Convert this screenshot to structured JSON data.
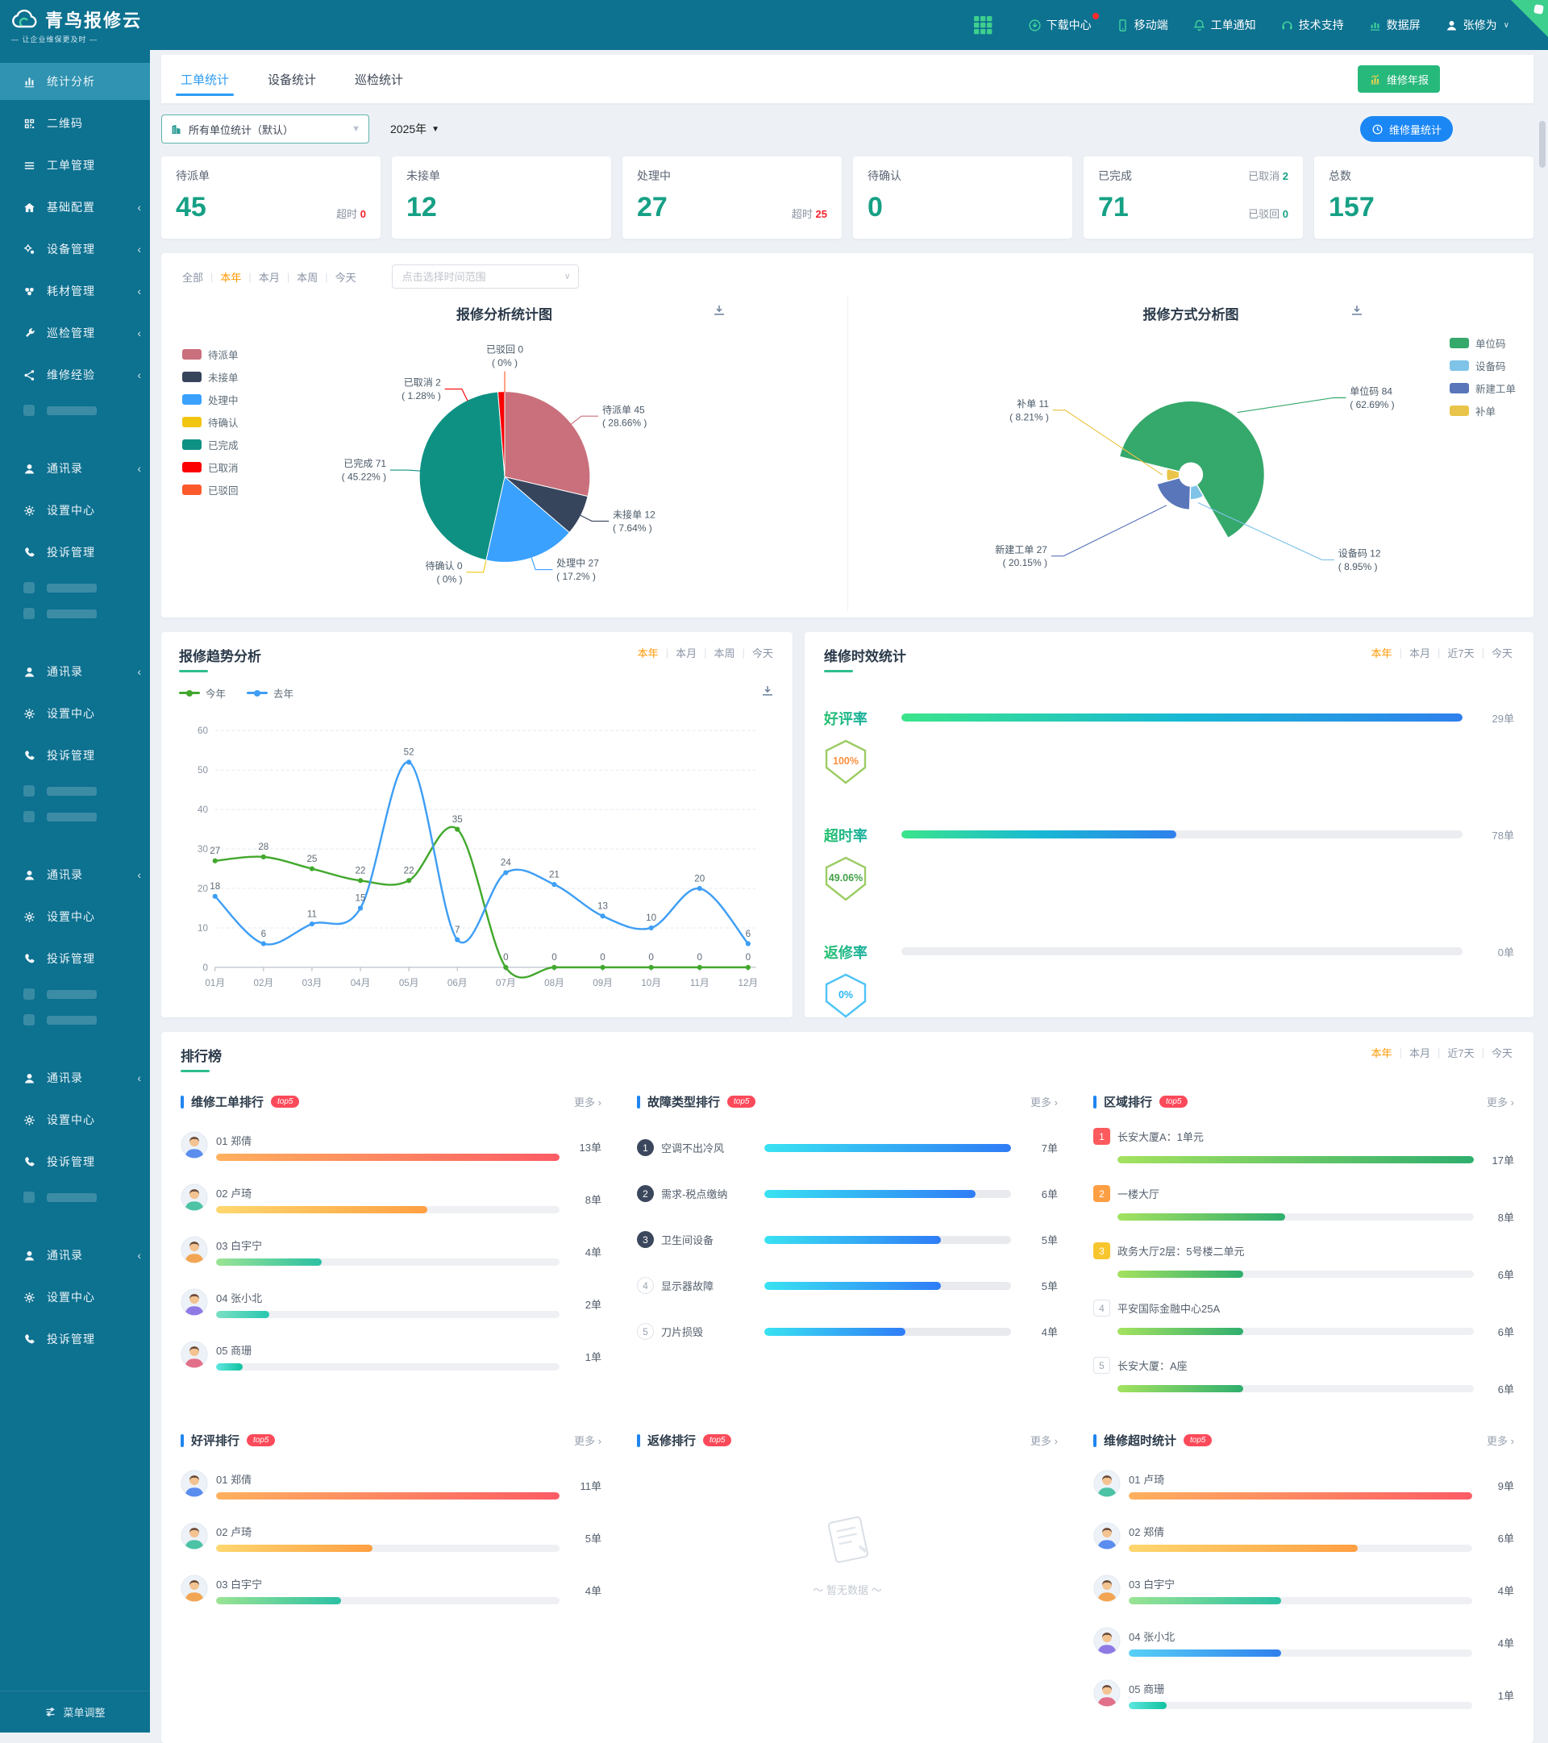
{
  "brand": {
    "name": "青鸟报修云",
    "tagline": "— 让企业维保更及时 —"
  },
  "colors": {
    "primary_teal": "#0d7190",
    "accent_green": "#2fbe8e",
    "accent_blue": "#2d9cf4",
    "accent_orange": "#ff9800",
    "stat_teal": "#16a085",
    "alert_red": "#f5222d"
  },
  "topnav": {
    "items": [
      {
        "id": "download-center",
        "icon": "download",
        "label": "下载中心",
        "badge": true
      },
      {
        "id": "mobile",
        "icon": "mobile",
        "label": "移动端"
      },
      {
        "id": "order-notice",
        "icon": "bell",
        "label": "工单通知"
      },
      {
        "id": "tech-support",
        "icon": "headset",
        "label": "技术支持"
      },
      {
        "id": "data-screen",
        "icon": "screen",
        "label": "数据屏"
      },
      {
        "id": "user",
        "icon": "user",
        "label": "张修为",
        "caret": true
      }
    ]
  },
  "sidebar": {
    "items": [
      {
        "label": "统计分析",
        "icon": "chart",
        "active": true
      },
      {
        "label": "二维码",
        "icon": "qrcode"
      },
      {
        "label": "工单管理",
        "icon": "list"
      },
      {
        "label": "基础配置",
        "icon": "home",
        "arrow": true
      },
      {
        "label": "设备管理",
        "icon": "gears",
        "arrow": true
      },
      {
        "label": "耗材管理",
        "icon": "boxes",
        "arrow": true
      },
      {
        "label": "巡检管理",
        "icon": "wrench",
        "arrow": true
      },
      {
        "label": "维修经验",
        "icon": "share",
        "arrow": true
      },
      {
        "ghost": true
      },
      {
        "label": "通讯录",
        "icon": "user",
        "arrow": true
      },
      {
        "label": "设置中心",
        "icon": "gear"
      },
      {
        "label": "投诉管理",
        "icon": "phone"
      },
      {
        "ghost": true
      },
      {
        "ghost": true
      },
      {
        "label": "通讯录",
        "icon": "user",
        "arrow": true
      },
      {
        "label": "设置中心",
        "icon": "gear"
      },
      {
        "label": "投诉管理",
        "icon": "phone"
      },
      {
        "ghost": true
      },
      {
        "ghost": true
      },
      {
        "label": "通讯录",
        "icon": "user",
        "arrow": true
      },
      {
        "label": "设置中心",
        "icon": "gear"
      },
      {
        "label": "投诉管理",
        "icon": "phone"
      },
      {
        "ghost": true
      },
      {
        "ghost": true
      },
      {
        "label": "通讯录",
        "icon": "user",
        "arrow": true
      },
      {
        "label": "设置中心",
        "icon": "gear"
      },
      {
        "label": "投诉管理",
        "icon": "phone"
      },
      {
        "ghost": true
      },
      {
        "label": "通讯录",
        "icon": "user",
        "arrow": true
      },
      {
        "label": "设置中心",
        "icon": "gear"
      },
      {
        "label": "投诉管理",
        "icon": "phone"
      }
    ],
    "footer": "菜单调整"
  },
  "tabs": {
    "items": [
      "工单统计",
      "设备统计",
      "巡检统计"
    ],
    "active": 0
  },
  "buttons": {
    "annual_report": "维修年报",
    "volume_stats": "维修量统计"
  },
  "toolbar": {
    "unit_filter": "所有单位统计（默认）",
    "year": "2025年"
  },
  "stat_cards": [
    {
      "title": "待派单",
      "value": "45",
      "side": [
        {
          "label": "超时",
          "value": "0",
          "tone": "red",
          "row": "bottom"
        }
      ]
    },
    {
      "title": "未接单",
      "value": "12",
      "side": []
    },
    {
      "title": "处理中",
      "value": "27",
      "side": [
        {
          "label": "超时",
          "value": "25",
          "tone": "red",
          "row": "bottom"
        }
      ]
    },
    {
      "title": "待确认",
      "value": "0",
      "side": []
    },
    {
      "title": "已完成",
      "value": "71",
      "side": [
        {
          "label": "已取消",
          "value": "2",
          "tone": "teal",
          "row": "top"
        },
        {
          "label": "已驳回",
          "value": "0",
          "tone": "teal",
          "row": "bottom"
        }
      ]
    },
    {
      "title": "总数",
      "value": "157",
      "side": []
    }
  ],
  "filters": {
    "charts": {
      "options": [
        "全部",
        "本年",
        "本月",
        "本周",
        "今天"
      ],
      "active": 1
    },
    "trend": {
      "options": [
        "本年",
        "本月",
        "本周",
        "今天"
      ],
      "active": 0
    },
    "efficiency": {
      "options": [
        "本年",
        "本月",
        "近7天",
        "今天"
      ],
      "active": 0
    },
    "rankings": {
      "options": [
        "本年",
        "本月",
        "近7天",
        "今天"
      ],
      "active": 0
    },
    "range_placeholder": "点击选择时间范围"
  },
  "chart_data": [
    {
      "id": "repair_status_pie",
      "type": "pie",
      "title": "报修分析统计图",
      "legend": [
        "待派单",
        "未接单",
        "处理中",
        "待确认",
        "已完成",
        "已取消",
        "已驳回"
      ],
      "series": [
        {
          "name": "待派单",
          "value": 45,
          "pct": "28.66%",
          "color": "#c9707c"
        },
        {
          "name": "未接单",
          "value": 12,
          "pct": "7.64%",
          "color": "#36445c"
        },
        {
          "name": "处理中",
          "value": 27,
          "pct": "17.2%",
          "color": "#3aa1ff"
        },
        {
          "name": "待确认",
          "value": 0,
          "pct": "0%",
          "color": "#f2c511"
        },
        {
          "name": "已完成",
          "value": 71,
          "pct": "45.22%",
          "color": "#0e9183"
        },
        {
          "name": "已取消",
          "value": 2,
          "pct": "1.28%",
          "color": "#fb0102"
        },
        {
          "name": "已驳回",
          "value": 0,
          "pct": "0%",
          "color": "#fc5a2d"
        }
      ]
    },
    {
      "id": "repair_channel_rose",
      "type": "pie",
      "subtype": "nightingale",
      "title": "报修方式分析图",
      "legend": [
        "单位码",
        "设备码",
        "新建工单",
        "补单"
      ],
      "start_angle": -76,
      "series": [
        {
          "name": "单位码",
          "value": 84,
          "pct": "62.69%",
          "color": "#35a86b"
        },
        {
          "name": "设备码",
          "value": 12,
          "pct": "8.95%",
          "color": "#7fc3e8"
        },
        {
          "name": "新建工单",
          "value": 27,
          "pct": "20.15%",
          "color": "#5976ba"
        },
        {
          "name": "补单",
          "value": 11,
          "pct": "8.21%",
          "color": "#e8c54a"
        }
      ]
    },
    {
      "id": "repair_trend",
      "type": "line",
      "title": "报修趋势分析",
      "categories": [
        "01月",
        "02月",
        "03月",
        "04月",
        "05月",
        "06月",
        "07月",
        "08月",
        "09月",
        "10月",
        "11月",
        "12月"
      ],
      "series": [
        {
          "name": "今年",
          "color": "#42a82d",
          "values": [
            27,
            28,
            25,
            22,
            22,
            35,
            0,
            0,
            0,
            0,
            0,
            0
          ]
        },
        {
          "name": "去年",
          "color": "#3e9ef5",
          "values": [
            18,
            6,
            11,
            15,
            52,
            7,
            24,
            21,
            13,
            10,
            20,
            6
          ]
        }
      ],
      "ylim": [
        0,
        60
      ],
      "yticks": [
        0,
        10,
        20,
        30,
        40,
        50,
        60
      ],
      "grid": true,
      "legend_position": "top-left"
    },
    {
      "id": "repair_efficiency",
      "type": "bar",
      "title": "维修时效统计",
      "rows": [
        {
          "label": "好评率",
          "pct": "100%",
          "ratio": 1,
          "count": "29单",
          "shield_color": "#9ccc65",
          "pct_color": "#ff8f3e"
        },
        {
          "label": "超时率",
          "pct": "49.06%",
          "ratio": 0.4906,
          "count": "78单",
          "shield_color": "#9ccc65",
          "pct_color": "#43a047"
        },
        {
          "label": "返修率",
          "pct": "0%",
          "ratio": 0,
          "count": "0单",
          "shield_color": "#4fc3f7",
          "pct_color": "#29b6f6"
        }
      ]
    }
  ],
  "rankings": {
    "title": "排行榜",
    "badge": "top5",
    "more_label": "更多",
    "empty_text": "～ 暂无数据 ～",
    "panels": [
      {
        "title": "维修工单排行",
        "kind": "person",
        "items": [
          {
            "rank": "01",
            "name": "郑倩",
            "count": "13单",
            "value": 13,
            "bar": [
              "#ffb05e",
              "#fc5c65"
            ],
            "avatar": "#5b8def"
          },
          {
            "rank": "02",
            "name": "卢琦",
            "count": "8单",
            "value": 8,
            "bar": [
              "#ffd76e",
              "#ff9f43"
            ],
            "avatar": "#4cc3a5"
          },
          {
            "rank": "03",
            "name": "白宇宁",
            "count": "4单",
            "value": 4,
            "bar": [
              "#9ae493",
              "#2bc0a4"
            ],
            "avatar": "#f2a654"
          },
          {
            "rank": "04",
            "name": "张小北",
            "count": "2单",
            "value": 2,
            "bar": [
              "#7ae0c3",
              "#28c7b0"
            ],
            "avatar": "#8f7ae5"
          },
          {
            "rank": "05",
            "name": "商珊",
            "count": "1单",
            "value": 1,
            "bar": [
              "#5ee7df",
              "#12c2a0"
            ],
            "avatar": "#e2708a"
          }
        ]
      },
      {
        "title": "故障类型排行",
        "kind": "fault",
        "bar": [
          "#39e2f2",
          "#2f7cf6"
        ],
        "items": [
          {
            "rank": "1",
            "name": "空调不出冷风",
            "count": "7单",
            "value": 7,
            "badge": "#3b475c"
          },
          {
            "rank": "2",
            "name": "需求-税点缴纳",
            "count": "6单",
            "value": 6,
            "badge": "#3b475c"
          },
          {
            "rank": "3",
            "name": "卫生间设备",
            "count": "5单",
            "value": 5,
            "badge": "#3b475c"
          },
          {
            "rank": "4",
            "name": "显示器故障",
            "count": "5单",
            "value": 5,
            "badge": "light"
          },
          {
            "rank": "5",
            "name": "刀片损毁",
            "count": "4单",
            "value": 4,
            "badge": "light"
          }
        ]
      },
      {
        "title": "区域排行",
        "kind": "area",
        "bar": [
          "#a4e25f",
          "#2fae6e"
        ],
        "items": [
          {
            "rank": "1",
            "name": "长安大厦A：1单元",
            "count": "17单",
            "value": 17,
            "badge": "#fd5a5e"
          },
          {
            "rank": "2",
            "name": "一楼大厅",
            "count": "8单",
            "value": 8,
            "badge": "#ff9f43"
          },
          {
            "rank": "3",
            "name": "政务大厅2层：5号楼二单元",
            "count": "6单",
            "value": 6,
            "badge": "#f7c52d"
          },
          {
            "rank": "4",
            "name": "平安国际金融中心25A",
            "count": "6单",
            "value": 6,
            "badge": "light"
          },
          {
            "rank": "5",
            "name": "长安大厦：A座",
            "count": "6单",
            "value": 6,
            "badge": "light"
          }
        ]
      },
      {
        "title": "好评排行",
        "kind": "person",
        "items": [
          {
            "rank": "01",
            "name": "郑倩",
            "count": "11单",
            "value": 11,
            "bar": [
              "#ffb05e",
              "#fc5c65"
            ],
            "avatar": "#5b8def"
          },
          {
            "rank": "02",
            "name": "卢琦",
            "count": "5单",
            "value": 5,
            "bar": [
              "#ffd76e",
              "#ff9f43"
            ],
            "avatar": "#4cc3a5"
          },
          {
            "rank": "03",
            "name": "白宇宁",
            "count": "4单",
            "value": 4,
            "bar": [
              "#9ae493",
              "#2bc0a4"
            ],
            "avatar": "#f2a654"
          }
        ]
      },
      {
        "title": "返修排行",
        "kind": "empty",
        "items": []
      },
      {
        "title": "维修超时统计",
        "kind": "person",
        "items": [
          {
            "rank": "01",
            "name": "卢琦",
            "count": "9单",
            "value": 9,
            "bar": [
              "#ffb05e",
              "#fc5c65"
            ],
            "avatar": "#4cc3a5"
          },
          {
            "rank": "02",
            "name": "郑倩",
            "count": "6单",
            "value": 6,
            "bar": [
              "#ffd76e",
              "#ff9f43"
            ],
            "avatar": "#5b8def"
          },
          {
            "rank": "03",
            "name": "白宇宁",
            "count": "4单",
            "value": 4,
            "bar": [
              "#9ae493",
              "#2bc0a4"
            ],
            "avatar": "#f2a654"
          },
          {
            "rank": "04",
            "name": "张小北",
            "count": "4单",
            "value": 4,
            "bar": [
              "#58d0f5",
              "#2f80ed"
            ],
            "avatar": "#8f7ae5"
          },
          {
            "rank": "05",
            "name": "商珊",
            "count": "1单",
            "value": 1,
            "bar": [
              "#5ee7df",
              "#12c2a0"
            ],
            "avatar": "#e2708a"
          }
        ]
      }
    ]
  }
}
